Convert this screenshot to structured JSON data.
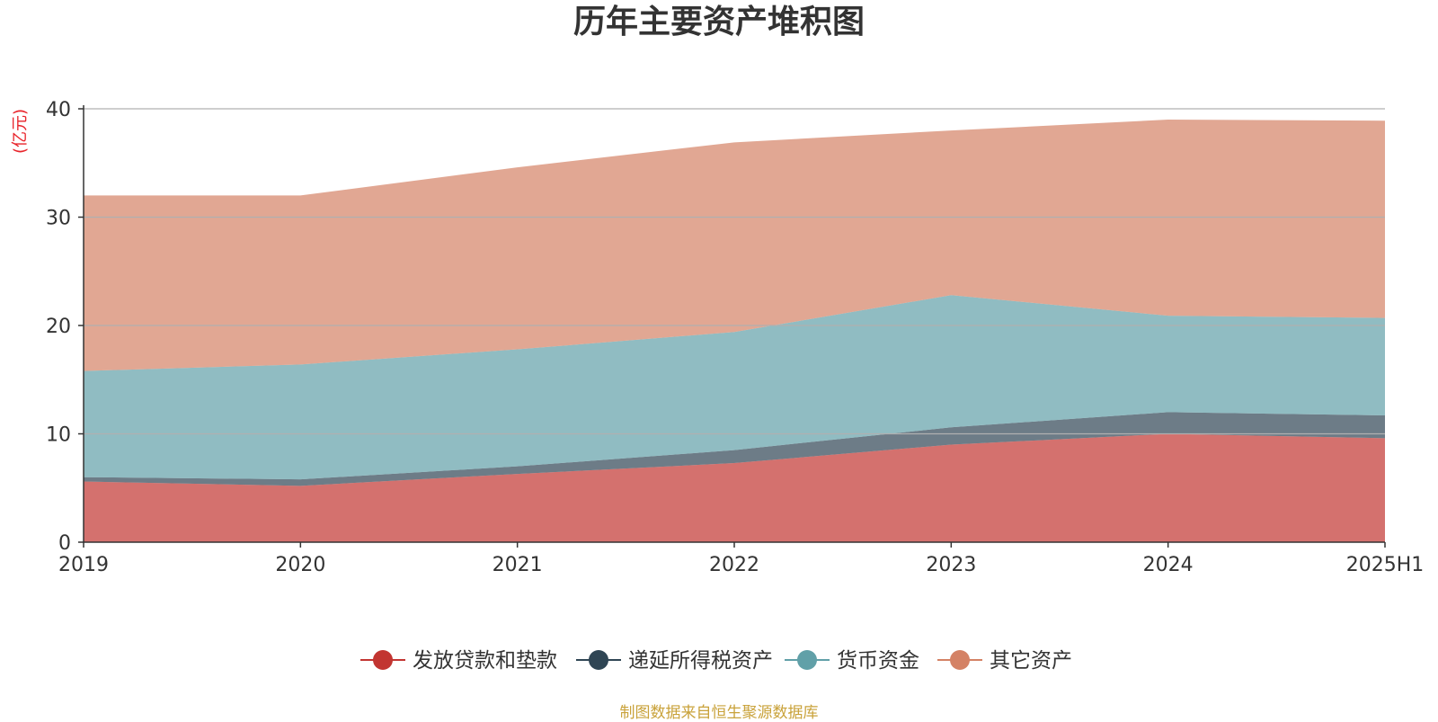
{
  "chart_data": {
    "type": "area",
    "stacked": true,
    "title": "历年主要资产堆积图",
    "unit_label": "(亿元)",
    "categories": [
      "2019",
      "2020",
      "2021",
      "2022",
      "2023",
      "2024",
      "2025H1"
    ],
    "ylim": [
      0,
      40
    ],
    "yticks": [
      0,
      10,
      20,
      30,
      40
    ],
    "grid": true,
    "legend_position": "bottom",
    "series": [
      {
        "name": "发放贷款和垫款",
        "color": "#c23531",
        "values": [
          5.6,
          5.2,
          6.3,
          7.3,
          9.0,
          10.0,
          9.6
        ]
      },
      {
        "name": "递延所得税资产",
        "color": "#2f4554",
        "values": [
          0.4,
          0.6,
          0.7,
          1.2,
          1.6,
          2.0,
          2.1
        ]
      },
      {
        "name": "货币资金",
        "color": "#61a0a8",
        "values": [
          9.8,
          10.6,
          10.8,
          10.9,
          12.2,
          8.9,
          9.0
        ]
      },
      {
        "name": "其它资产",
        "color": "#d48265",
        "values": [
          16.2,
          15.6,
          16.8,
          17.5,
          15.2,
          18.1,
          18.2
        ]
      }
    ]
  },
  "footer_text": "制图数据来自恒生聚源数据库"
}
